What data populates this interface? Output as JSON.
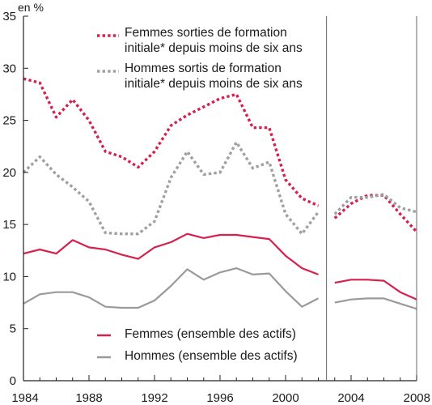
{
  "chart_data": {
    "type": "line",
    "ylabel": "en %",
    "ylim": [
      0,
      35
    ],
    "yticks": [
      0,
      5,
      10,
      15,
      20,
      25,
      30,
      35
    ],
    "xlim": [
      1984,
      2008
    ],
    "xticks": [
      1984,
      1988,
      1992,
      1996,
      2000,
      2004,
      2008
    ],
    "grid": false,
    "legend_position": "inside-top and inside-bottom",
    "break_at": 2002.5,
    "series": [
      {
        "name": "Femmes sorties de formation initiale* depuis moins de six ans",
        "style": "dotted",
        "color": "#d6204e",
        "segments": [
          [
            [
              1984,
              29.0
            ],
            [
              1985,
              28.6
            ],
            [
              1986,
              25.3
            ],
            [
              1987,
              27.0
            ],
            [
              1988,
              25.0
            ],
            [
              1989,
              22.0
            ],
            [
              1990,
              21.5
            ],
            [
              1991,
              20.5
            ],
            [
              1992,
              22.0
            ],
            [
              1993,
              24.5
            ],
            [
              1994,
              25.5
            ],
            [
              1995,
              26.3
            ],
            [
              1996,
              27.1
            ],
            [
              1997,
              27.5
            ],
            [
              1998,
              24.3
            ],
            [
              1999,
              24.3
            ],
            [
              2000,
              19.3
            ],
            [
              2001,
              17.5
            ],
            [
              2002,
              16.8
            ]
          ],
          [
            [
              2003,
              15.6
            ],
            [
              2004,
              17.0
            ],
            [
              2005,
              17.8
            ],
            [
              2006,
              17.8
            ],
            [
              2007,
              16.0
            ],
            [
              2008,
              14.3
            ]
          ]
        ]
      },
      {
        "name": "Hommes sortis de formation initiale* depuis moins de six ans",
        "style": "dotted",
        "color": "#a0a0a0",
        "segments": [
          [
            [
              1984,
              20.0
            ],
            [
              1985,
              21.5
            ],
            [
              1986,
              19.8
            ],
            [
              1987,
              18.6
            ],
            [
              1988,
              17.2
            ],
            [
              1989,
              14.2
            ],
            [
              1990,
              14.1
            ],
            [
              1991,
              14.1
            ],
            [
              1992,
              15.3
            ],
            [
              1993,
              19.5
            ],
            [
              1994,
              22.0
            ],
            [
              1995,
              19.8
            ],
            [
              1996,
              20.0
            ],
            [
              1997,
              22.9
            ],
            [
              1998,
              20.4
            ],
            [
              1999,
              21.0
            ],
            [
              2000,
              16.0
            ],
            [
              2001,
              14.1
            ],
            [
              2002,
              16.2
            ]
          ],
          [
            [
              2003,
              16.0
            ],
            [
              2004,
              17.6
            ],
            [
              2005,
              17.6
            ],
            [
              2006,
              17.9
            ],
            [
              2007,
              16.6
            ],
            [
              2008,
              16.2
            ]
          ]
        ]
      },
      {
        "name": "Femmes (ensemble des actifs)",
        "style": "solid",
        "color": "#d6204e",
        "segments": [
          [
            [
              1984,
              12.2
            ],
            [
              1985,
              12.6
            ],
            [
              1986,
              12.2
            ],
            [
              1987,
              13.5
            ],
            [
              1988,
              12.8
            ],
            [
              1989,
              12.6
            ],
            [
              1990,
              12.1
            ],
            [
              1991,
              11.7
            ],
            [
              1992,
              12.8
            ],
            [
              1993,
              13.3
            ],
            [
              1994,
              14.1
            ],
            [
              1995,
              13.7
            ],
            [
              1996,
              14.0
            ],
            [
              1997,
              14.0
            ],
            [
              1998,
              13.8
            ],
            [
              1999,
              13.6
            ],
            [
              2000,
              12.0
            ],
            [
              2001,
              10.8
            ],
            [
              2002,
              10.2
            ]
          ],
          [
            [
              2003,
              9.4
            ],
            [
              2004,
              9.7
            ],
            [
              2005,
              9.7
            ],
            [
              2006,
              9.6
            ],
            [
              2007,
              8.5
            ],
            [
              2008,
              7.8
            ]
          ]
        ]
      },
      {
        "name": "Hommes (ensemble des actifs)",
        "style": "solid",
        "color": "#9a9a9a",
        "segments": [
          [
            [
              1984,
              7.4
            ],
            [
              1985,
              8.3
            ],
            [
              1986,
              8.5
            ],
            [
              1987,
              8.5
            ],
            [
              1988,
              8.0
            ],
            [
              1989,
              7.1
            ],
            [
              1990,
              7.0
            ],
            [
              1991,
              7.0
            ],
            [
              1992,
              7.7
            ],
            [
              1993,
              9.1
            ],
            [
              1994,
              10.7
            ],
            [
              1995,
              9.7
            ],
            [
              1996,
              10.4
            ],
            [
              1997,
              10.8
            ],
            [
              1998,
              10.2
            ],
            [
              1999,
              10.3
            ],
            [
              2000,
              8.6
            ],
            [
              2001,
              7.1
            ],
            [
              2002,
              7.9
            ]
          ],
          [
            [
              2003,
              7.5
            ],
            [
              2004,
              7.8
            ],
            [
              2005,
              7.9
            ],
            [
              2006,
              7.9
            ],
            [
              2007,
              7.4
            ],
            [
              2008,
              6.9
            ]
          ]
        ]
      }
    ],
    "legend": [
      {
        "lines": [
          "Femmes sorties de formation",
          "initiale* depuis moins de six ans"
        ],
        "color": "#d6204e",
        "style": "dotted"
      },
      {
        "lines": [
          "Hommes sortis de formation",
          "initiale* depuis moins de six ans"
        ],
        "color": "#a0a0a0",
        "style": "dotted"
      },
      {
        "lines": [
          "Femmes (ensemble des actifs)"
        ],
        "color": "#d6204e",
        "style": "solid"
      },
      {
        "lines": [
          "Hommes (ensemble des actifs)"
        ],
        "color": "#9a9a9a",
        "style": "solid"
      }
    ]
  }
}
